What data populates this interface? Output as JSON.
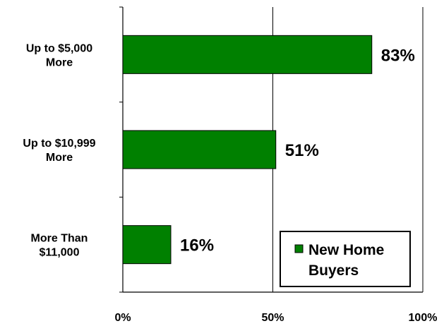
{
  "chart_data": {
    "type": "bar",
    "orientation": "horizontal",
    "categories": [
      [
        "Up to $5,000",
        "More"
      ],
      [
        "Up to $10,999",
        "More"
      ],
      [
        "More Than",
        "$11,000"
      ]
    ],
    "series": [
      {
        "name": "New Home Buyers",
        "legend_lines": [
          "New Home",
          "Buyers"
        ],
        "values": [
          83,
          51,
          16
        ],
        "color": "#008000"
      }
    ],
    "data_labels": [
      "83%",
      "51%",
      "16%"
    ],
    "x_ticks": [
      0,
      50,
      100
    ],
    "x_tick_labels": [
      "0%",
      "50%",
      "100%"
    ],
    "xlim": [
      0,
      100
    ],
    "grid": "vertical at 50%",
    "legend_position": "bottom-right",
    "title": "",
    "xlabel": "",
    "ylabel": ""
  }
}
